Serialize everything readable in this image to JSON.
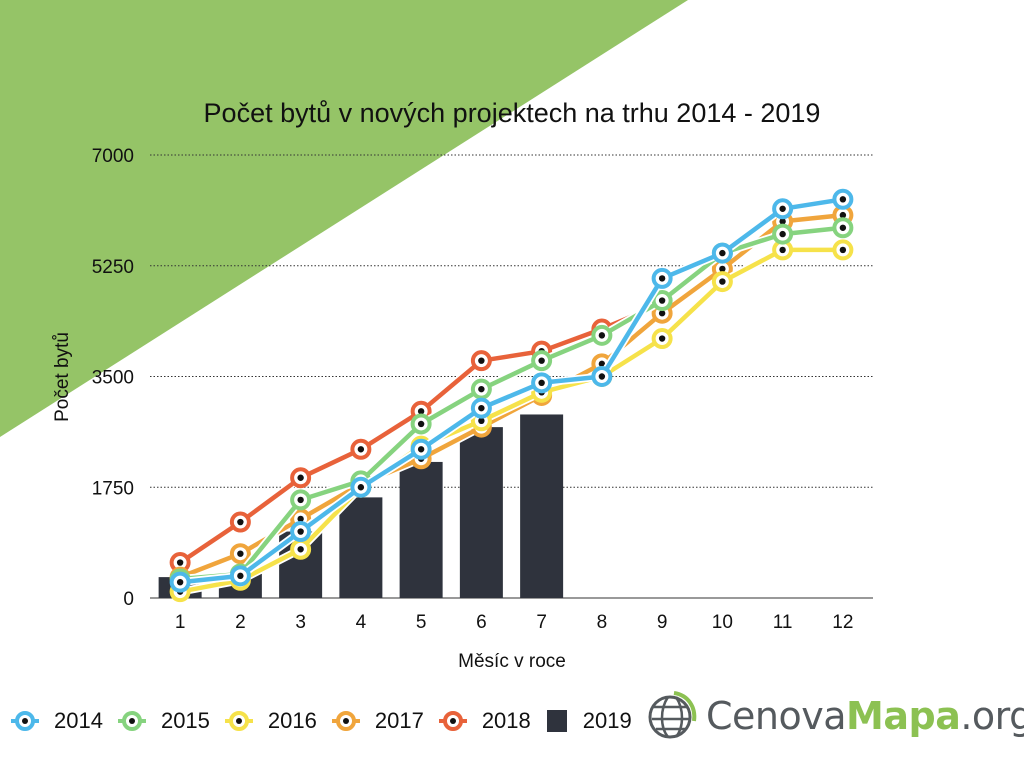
{
  "chart_data": {
    "type": "line",
    "title": "Počet bytů v nových projektech na trhu 2014 - 2019",
    "xlabel": "Měsíc v roce",
    "ylabel": "Počet bytů",
    "x": [
      1,
      2,
      3,
      4,
      5,
      6,
      7,
      8,
      9,
      10,
      11,
      12
    ],
    "ylim": [
      0,
      7000
    ],
    "yticks": [
      0,
      1750,
      3500,
      5250,
      7000
    ],
    "grid": "horizontal dotted",
    "legend_position": "bottom-left",
    "series": [
      {
        "name": "2014",
        "type": "line",
        "color": "#4db8ea",
        "values": [
          250,
          350,
          1050,
          1750,
          2350,
          3000,
          3400,
          3500,
          5050,
          5450,
          6150,
          6300
        ]
      },
      {
        "name": "2015",
        "type": "line",
        "color": "#86d37f",
        "values": [
          300,
          380,
          1550,
          1850,
          2750,
          3300,
          3750,
          4150,
          4700,
          5450,
          5750,
          5850
        ]
      },
      {
        "name": "2016",
        "type": "line",
        "color": "#f6e24a",
        "values": [
          100,
          280,
          770,
          1750,
          2400,
          2800,
          3250,
          3500,
          4100,
          5000,
          5500,
          5500
        ]
      },
      {
        "name": "2017",
        "type": "line",
        "color": "#f0a53c",
        "values": [
          330,
          700,
          1250,
          1800,
          2200,
          2700,
          3200,
          3700,
          4500,
          5200,
          5950,
          6050
        ]
      },
      {
        "name": "2018",
        "type": "line",
        "color": "#e8623a",
        "values": [
          560,
          1200,
          1900,
          2350,
          2950,
          3750,
          3900,
          4250,
          4650,
          null,
          null,
          null
        ]
      },
      {
        "name": "2019",
        "type": "bar",
        "color": "#2f333d",
        "values": [
          330,
          380,
          1050,
          1590,
          2150,
          2700,
          2900,
          null,
          null,
          null,
          null,
          null
        ]
      }
    ]
  },
  "logo": {
    "text_a": "Cenova",
    "text_b": "Mapa",
    "text_c": ".org"
  },
  "colors": {
    "accent_green": "#95c467",
    "bar": "#2f333d",
    "gridline": "#333333"
  }
}
